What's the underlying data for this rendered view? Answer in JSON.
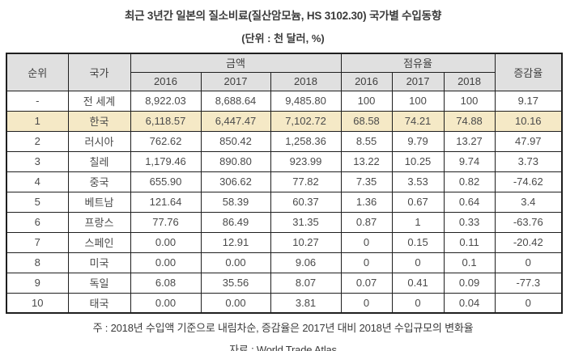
{
  "title": "최근 3년간 일본의 질소비료(질산암모늄, HS 3102.30) 국가별 수입동향",
  "unit_note": "(단위 : 천 달러, %)",
  "table": {
    "headers": {
      "rank": "순위",
      "country": "국가",
      "amount_group": "금액",
      "share_group": "점유율",
      "change": "증감율",
      "years": [
        "2016",
        "2017",
        "2018"
      ]
    },
    "rows": [
      {
        "rank": "-",
        "country": "전 세계",
        "amount": [
          "8,922.03",
          "8,688.64",
          "9,485.80"
        ],
        "share": [
          "100",
          "100",
          "100"
        ],
        "change": "9.17",
        "highlight": false
      },
      {
        "rank": "1",
        "country": "한국",
        "amount": [
          "6,118.57",
          "6,447.47",
          "7,102.72"
        ],
        "share": [
          "68.58",
          "74.21",
          "74.88"
        ],
        "change": "10.16",
        "highlight": true
      },
      {
        "rank": "2",
        "country": "러시아",
        "amount": [
          "762.62",
          "850.42",
          "1,258.36"
        ],
        "share": [
          "8.55",
          "9.79",
          "13.27"
        ],
        "change": "47.97",
        "highlight": false
      },
      {
        "rank": "3",
        "country": "칠레",
        "amount": [
          "1,179.46",
          "890.80",
          "923.99"
        ],
        "share": [
          "13.22",
          "10.25",
          "9.74"
        ],
        "change": "3.73",
        "highlight": false
      },
      {
        "rank": "4",
        "country": "중국",
        "amount": [
          "655.90",
          "306.62",
          "77.82"
        ],
        "share": [
          "7.35",
          "3.53",
          "0.82"
        ],
        "change": "-74.62",
        "highlight": false
      },
      {
        "rank": "5",
        "country": "베트남",
        "amount": [
          "121.64",
          "58.39",
          "60.37"
        ],
        "share": [
          "1.36",
          "0.67",
          "0.64"
        ],
        "change": "3.4",
        "highlight": false
      },
      {
        "rank": "6",
        "country": "프랑스",
        "amount": [
          "77.76",
          "86.49",
          "31.35"
        ],
        "share": [
          "0.87",
          "1",
          "0.33"
        ],
        "change": "-63.76",
        "highlight": false
      },
      {
        "rank": "7",
        "country": "스페인",
        "amount": [
          "0.00",
          "12.91",
          "10.27"
        ],
        "share": [
          "0",
          "0.15",
          "0.11"
        ],
        "change": "-20.42",
        "highlight": false
      },
      {
        "rank": "8",
        "country": "미국",
        "amount": [
          "0.00",
          "0.00",
          "9.06"
        ],
        "share": [
          "0",
          "0",
          "0.1"
        ],
        "change": "0",
        "highlight": false
      },
      {
        "rank": "9",
        "country": "독일",
        "amount": [
          "6.08",
          "35.56",
          "8.07"
        ],
        "share": [
          "0.07",
          "0.41",
          "0.09"
        ],
        "change": "-77.3",
        "highlight": false
      },
      {
        "rank": "10",
        "country": "태국",
        "amount": [
          "0.00",
          "0.00",
          "3.81"
        ],
        "share": [
          "0",
          "0",
          "0.04"
        ],
        "change": "0",
        "highlight": false
      }
    ]
  },
  "footnotes": {
    "note": "주 : 2018년 수입액 기준으로 내림차순, 증감율은 2017년 대비 2018년 수입규모의 변화율",
    "source": "자료 : World Trade Atlas"
  },
  "colors": {
    "header_bg": "#e0e0e0",
    "highlight_bg": "#f5e9c6",
    "border": "#1f1f1f",
    "text": "#3f3f3f"
  }
}
